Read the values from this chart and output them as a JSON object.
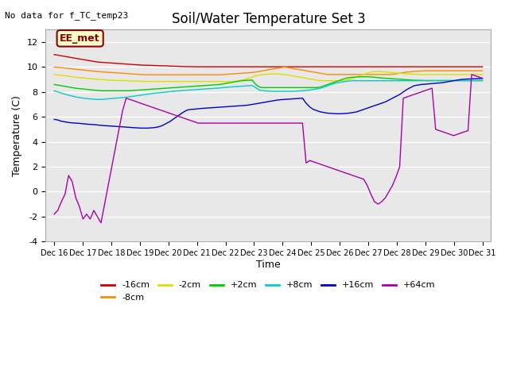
{
  "title": "Soil/Water Temperature Set 3",
  "xlabel": "Time",
  "ylabel": "Temperature (C)",
  "ylim": [
    -4,
    13
  ],
  "note": "No data for f_TC_temp23",
  "annotation": "EE_met",
  "bg_color": "#e8e8e8",
  "grid_color": "white",
  "x_tick_labels": [
    "Dec 16",
    "Dec 17",
    "Dec 18",
    "Dec 19",
    "Dec 20",
    "Dec 21",
    "Dec 22",
    "Dec 23",
    "Dec 24",
    "Dec 25",
    "Dec 26",
    "Dec 27",
    "Dec 28",
    "Dec 29",
    "Dec 30",
    "Dec 31"
  ],
  "yticks": [
    -4,
    -2,
    0,
    2,
    4,
    6,
    8,
    10,
    12
  ],
  "series_order": [
    "-16cm",
    "-8cm",
    "-2cm",
    "+2cm",
    "+8cm",
    "+16cm",
    "+64cm"
  ],
  "series": {
    "-16cm": {
      "color": "#cc0000",
      "data": [
        11.0,
        10.95,
        10.9,
        10.85,
        10.8,
        10.75,
        10.7,
        10.65,
        10.6,
        10.55,
        10.5,
        10.45,
        10.4,
        10.38,
        10.36,
        10.34,
        10.32,
        10.3,
        10.28,
        10.26,
        10.24,
        10.22,
        10.2,
        10.18,
        10.16,
        10.15,
        10.14,
        10.13,
        10.12,
        10.11,
        10.1,
        10.1,
        10.08,
        10.07,
        10.06,
        10.05,
        10.04,
        10.03,
        10.03,
        10.02,
        10.02,
        10.02,
        10.02,
        10.02,
        10.02,
        10.02,
        10.02,
        10.02,
        10.02,
        10.02,
        10.02,
        10.02,
        10.02,
        10.02,
        10.02,
        10.02,
        10.02,
        10.02,
        10.02,
        10.02,
        10.02,
        10.02,
        10.02,
        10.02,
        10.02,
        10.02,
        10.02,
        10.02,
        10.02,
        10.02,
        10.02,
        10.02,
        10.02,
        10.02,
        10.02,
        10.02,
        10.02,
        10.02,
        10.02,
        10.02,
        10.02,
        10.02,
        10.02,
        10.02,
        10.02,
        10.02,
        10.02,
        10.02,
        10.02,
        10.02,
        10.02,
        10.02,
        10.02,
        10.02,
        10.02,
        10.02,
        10.02,
        10.02,
        10.02,
        10.02,
        10.02,
        10.02,
        10.02,
        10.02,
        10.02,
        10.02,
        10.02,
        10.02,
        10.02,
        10.02,
        10.02,
        10.02,
        10.02,
        10.02,
        10.02,
        10.02,
        10.02,
        10.02,
        10.02,
        10.02
      ]
    },
    "-8cm": {
      "color": "#ff8800",
      "data": [
        10.0,
        9.98,
        9.95,
        9.92,
        9.88,
        9.85,
        9.82,
        9.79,
        9.76,
        9.73,
        9.7,
        9.67,
        9.64,
        9.62,
        9.6,
        9.58,
        9.56,
        9.54,
        9.52,
        9.5,
        9.48,
        9.46,
        9.44,
        9.42,
        9.4,
        9.38,
        9.38,
        9.38,
        9.38,
        9.38,
        9.38,
        9.38,
        9.38,
        9.38,
        9.38,
        9.38,
        9.38,
        9.38,
        9.38,
        9.38,
        9.38,
        9.38,
        9.38,
        9.38,
        9.38,
        9.38,
        9.38,
        9.4,
        9.42,
        9.44,
        9.46,
        9.48,
        9.5,
        9.52,
        9.54,
        9.56,
        9.6,
        9.65,
        9.7,
        9.75,
        9.8,
        9.85,
        9.9,
        9.95,
        10.0,
        9.95,
        9.9,
        9.85,
        9.8,
        9.75,
        9.7,
        9.65,
        9.6,
        9.55,
        9.5,
        9.45,
        9.4,
        9.4,
        9.4,
        9.4,
        9.4,
        9.4,
        9.4,
        9.4,
        9.4,
        9.4,
        9.4,
        9.4,
        9.4,
        9.4,
        9.4,
        9.4,
        9.4,
        9.4,
        9.42,
        9.45,
        9.5,
        9.55,
        9.6,
        9.62,
        9.65,
        9.67,
        9.68,
        9.69,
        9.7,
        9.7,
        9.7,
        9.7,
        9.7,
        9.7,
        9.7,
        9.7,
        9.7,
        9.7,
        9.7,
        9.7,
        9.7,
        9.7,
        9.7,
        9.7
      ]
    },
    "-2cm": {
      "color": "#dddd00",
      "data": [
        9.4,
        9.37,
        9.33,
        9.3,
        9.26,
        9.22,
        9.18,
        9.15,
        9.12,
        9.1,
        9.07,
        9.04,
        9.02,
        9.0,
        8.98,
        8.96,
        8.94,
        8.93,
        8.92,
        8.91,
        8.9,
        8.89,
        8.88,
        8.87,
        8.86,
        8.85,
        8.84,
        8.84,
        8.84,
        8.84,
        8.84,
        8.84,
        8.84,
        8.84,
        8.84,
        8.84,
        8.84,
        8.84,
        8.84,
        8.84,
        8.84,
        8.84,
        8.84,
        8.84,
        8.84,
        8.84,
        8.84,
        8.84,
        8.84,
        8.84,
        8.84,
        8.9,
        8.95,
        9.0,
        9.1,
        9.2,
        9.3,
        9.35,
        9.4,
        9.42,
        9.44,
        9.45,
        9.44,
        9.42,
        9.4,
        9.35,
        9.3,
        9.25,
        9.2,
        9.15,
        9.1,
        9.05,
        9.0,
        8.95,
        8.9,
        8.9,
        8.9,
        8.9,
        8.9,
        8.9,
        8.9,
        8.95,
        9.0,
        9.1,
        9.2,
        9.3,
        9.4,
        9.5,
        9.6,
        9.62,
        9.65,
        9.62,
        9.6,
        9.58,
        9.55,
        9.52,
        9.5,
        9.48,
        9.45,
        9.43,
        9.42,
        9.41,
        9.4,
        9.4,
        9.4,
        9.4,
        9.4,
        9.4,
        9.4,
        9.4,
        9.4,
        9.4,
        9.4,
        9.4,
        9.4,
        9.4,
        9.4,
        9.4,
        9.4,
        9.4
      ]
    },
    "+2cm": {
      "color": "#00cc00",
      "data": [
        8.6,
        8.55,
        8.5,
        8.45,
        8.4,
        8.35,
        8.3,
        8.27,
        8.24,
        8.21,
        8.18,
        8.15,
        8.12,
        8.1,
        8.1,
        8.1,
        8.1,
        8.1,
        8.1,
        8.1,
        8.1,
        8.1,
        8.12,
        8.14,
        8.16,
        8.18,
        8.2,
        8.22,
        8.24,
        8.26,
        8.28,
        8.3,
        8.32,
        8.34,
        8.36,
        8.38,
        8.4,
        8.42,
        8.44,
        8.46,
        8.48,
        8.5,
        8.52,
        8.54,
        8.56,
        8.58,
        8.6,
        8.65,
        8.7,
        8.75,
        8.8,
        8.85,
        8.9,
        8.92,
        8.94,
        8.96,
        8.6,
        8.4,
        8.35,
        8.35,
        8.35,
        8.35,
        8.35,
        8.35,
        8.35,
        8.35,
        8.35,
        8.35,
        8.35,
        8.35,
        8.35,
        8.35,
        8.35,
        8.35,
        8.4,
        8.5,
        8.6,
        8.7,
        8.8,
        8.9,
        9.0,
        9.1,
        9.15,
        9.18,
        9.2,
        9.22,
        9.22,
        9.22,
        9.2,
        9.18,
        9.15,
        9.12,
        9.1,
        9.08,
        9.06,
        9.04,
        9.02,
        9.0,
        8.98,
        8.96,
        8.95,
        8.94,
        8.93,
        8.92,
        8.92,
        8.92,
        8.92,
        8.92,
        8.92,
        8.92,
        8.92,
        8.92,
        8.92,
        8.92,
        8.92,
        8.92,
        8.92,
        8.92,
        8.92,
        8.92
      ]
    },
    "+8cm": {
      "color": "#00cccc",
      "data": [
        8.1,
        8.0,
        7.9,
        7.82,
        7.74,
        7.67,
        7.6,
        7.55,
        7.5,
        7.47,
        7.44,
        7.42,
        7.4,
        7.4,
        7.42,
        7.45,
        7.48,
        7.5,
        7.52,
        7.55,
        7.58,
        7.62,
        7.66,
        7.7,
        7.74,
        7.78,
        7.82,
        7.86,
        7.9,
        7.93,
        7.96,
        7.99,
        8.02,
        8.05,
        8.08,
        8.1,
        8.12,
        8.14,
        8.16,
        8.18,
        8.2,
        8.22,
        8.24,
        8.26,
        8.28,
        8.3,
        8.32,
        8.35,
        8.38,
        8.4,
        8.42,
        8.44,
        8.46,
        8.48,
        8.5,
        8.52,
        8.35,
        8.15,
        8.1,
        8.08,
        8.06,
        8.05,
        8.05,
        8.05,
        8.05,
        8.05,
        8.05,
        8.05,
        8.08,
        8.1,
        8.12,
        8.15,
        8.2,
        8.25,
        8.3,
        8.4,
        8.5,
        8.6,
        8.7,
        8.75,
        8.8,
        8.85,
        8.88,
        8.9,
        8.9,
        8.9,
        8.9,
        8.9,
        8.9,
        8.9,
        8.9,
        8.9,
        8.9,
        8.9,
        8.9,
        8.9,
        8.9,
        8.9,
        8.9,
        8.9,
        8.9,
        8.9,
        8.9,
        8.9,
        8.9,
        8.9,
        8.9,
        8.9,
        8.9,
        8.9,
        8.9,
        8.9,
        8.9,
        8.9,
        8.9,
        8.9,
        8.9,
        8.9,
        8.9,
        8.9
      ]
    },
    "+16cm": {
      "color": "#0000cc",
      "data": [
        5.8,
        5.75,
        5.65,
        5.6,
        5.55,
        5.52,
        5.5,
        5.48,
        5.45,
        5.42,
        5.4,
        5.38,
        5.35,
        5.32,
        5.3,
        5.28,
        5.26,
        5.24,
        5.22,
        5.2,
        5.18,
        5.16,
        5.14,
        5.12,
        5.1,
        5.1,
        5.1,
        5.12,
        5.15,
        5.2,
        5.3,
        5.45,
        5.6,
        5.8,
        6.0,
        6.2,
        6.4,
        6.55,
        6.6,
        6.62,
        6.65,
        6.68,
        6.7,
        6.72,
        6.74,
        6.76,
        6.78,
        6.8,
        6.82,
        6.84,
        6.86,
        6.88,
        6.9,
        6.92,
        6.95,
        7.0,
        7.05,
        7.1,
        7.15,
        7.2,
        7.25,
        7.3,
        7.35,
        7.38,
        7.4,
        7.42,
        7.44,
        7.46,
        7.48,
        7.5,
        7.1,
        6.8,
        6.6,
        6.5,
        6.4,
        6.35,
        6.3,
        6.28,
        6.26,
        6.25,
        6.26,
        6.28,
        6.3,
        6.35,
        6.4,
        6.5,
        6.6,
        6.7,
        6.8,
        6.9,
        7.0,
        7.1,
        7.2,
        7.35,
        7.5,
        7.65,
        7.8,
        8.0,
        8.2,
        8.35,
        8.5,
        8.55,
        8.6,
        8.62,
        8.65,
        8.67,
        8.7,
        8.72,
        8.75,
        8.8,
        8.85,
        8.9,
        8.95,
        9.0,
        9.02,
        9.04,
        9.05,
        9.06,
        9.07,
        9.08
      ]
    },
    "+64cm": {
      "color": "#aa00aa",
      "data": [
        -1.8,
        -1.5,
        -0.8,
        -0.2,
        1.3,
        0.8,
        -0.5,
        -1.2,
        -2.2,
        -1.8,
        -2.2,
        -1.5,
        -2.0,
        -2.5,
        -1.0,
        0.5,
        2.0,
        3.5,
        5.0,
        6.5,
        7.5,
        7.4,
        7.3,
        7.2,
        7.1,
        7.0,
        6.9,
        6.8,
        6.7,
        6.6,
        6.5,
        6.4,
        6.3,
        6.2,
        6.1,
        6.0,
        5.9,
        5.8,
        5.7,
        5.6,
        5.5,
        5.5,
        5.5,
        5.5,
        5.5,
        5.5,
        5.5,
        5.5,
        5.5,
        5.5,
        5.5,
        5.5,
        5.5,
        5.5,
        5.5,
        5.5,
        5.5,
        5.5,
        5.5,
        5.5,
        5.5,
        5.5,
        5.5,
        5.5,
        5.5,
        5.5,
        5.5,
        5.5,
        5.5,
        5.5,
        2.3,
        2.5,
        2.4,
        2.3,
        2.2,
        2.1,
        2.0,
        1.9,
        1.8,
        1.7,
        1.6,
        1.5,
        1.4,
        1.3,
        1.2,
        1.1,
        1.0,
        0.5,
        -0.2,
        -0.8,
        -1.0,
        -0.8,
        -0.5,
        0.0,
        0.5,
        1.2,
        2.0,
        7.5,
        7.6,
        7.7,
        7.8,
        7.9,
        8.0,
        8.1,
        8.2,
        8.3,
        5.0,
        4.9,
        4.8,
        4.7,
        4.6,
        4.5,
        4.6,
        4.7,
        4.8,
        4.9,
        9.4,
        9.3,
        9.2,
        9.1
      ]
    }
  }
}
